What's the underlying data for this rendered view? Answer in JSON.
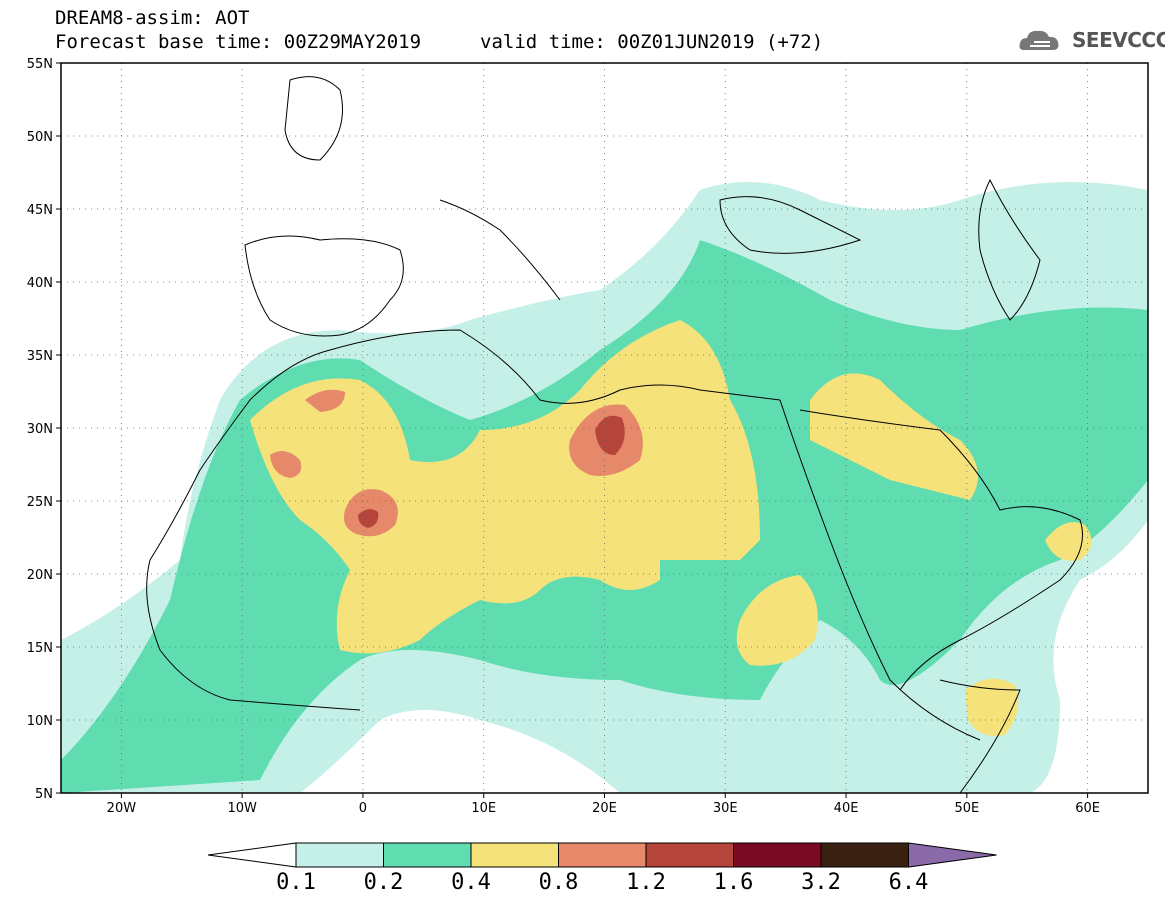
{
  "header": {
    "model_line": "DREAM8-assim: AOT",
    "base_time_line": "Forecast base time: 00Z29MAY2019",
    "valid_time_line": "valid time: 00Z01JUN2019 (+72)",
    "logo_text": "SEEVCCC",
    "logo_icon": "cloud-icon"
  },
  "map": {
    "lat_range": [
      5,
      55
    ],
    "lon_range": [
      -25,
      65
    ],
    "lat_labels": [
      "55N",
      "50N",
      "45N",
      "40N",
      "35N",
      "30N",
      "25N",
      "20N",
      "15N",
      "10N",
      "5N"
    ],
    "lon_labels": [
      "20W",
      "10W",
      "0",
      "10E",
      "20E",
      "30E",
      "40E",
      "50E",
      "60E"
    ],
    "grid": "dotted"
  },
  "colorbar": {
    "labels": [
      "0.1",
      "0.2",
      "0.4",
      "0.8",
      "1.2",
      "1.6",
      "3.2",
      "6.4"
    ],
    "colors": [
      "#ffffff",
      "#c5f0e8",
      "#5fdcb0",
      "#f5e27a",
      "#e6886a",
      "#b5453a",
      "#7a0a24",
      "#3a2010",
      "#8a6aa8"
    ]
  }
}
